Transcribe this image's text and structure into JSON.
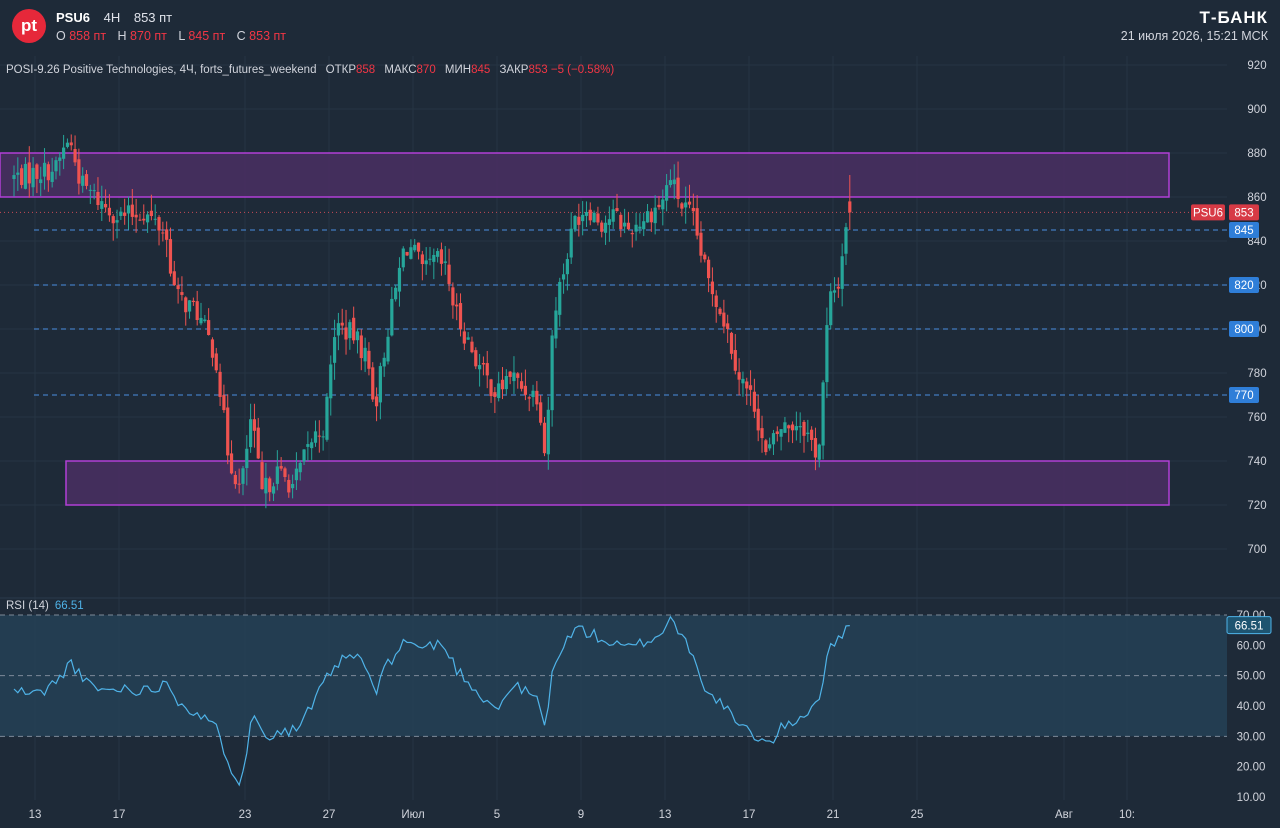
{
  "header": {
    "logo_text": "pt",
    "symbol": "PSU6",
    "interval": "4H",
    "last_price": "853 пт",
    "ohlc": [
      {
        "label": "O",
        "value": "858 пт"
      },
      {
        "label": "H",
        "value": "870 пт"
      },
      {
        "label": "L",
        "value": "845 пт"
      },
      {
        "label": "C",
        "value": "853 пт"
      }
    ],
    "brand": "Т-БАНК",
    "datetime": "21 июля 2026, 15:21 МСК"
  },
  "legend": {
    "title": "POSI-9.26 Positive Technologies, 4Ч, forts_futures_weekend",
    "open_label": "ОТКР",
    "open": "858",
    "high_label": "МАКС",
    "high": "870",
    "low_label": "МИН",
    "low": "845",
    "close_label": "ЗАКР",
    "close": "853",
    "change": "−5 (−0.58%)"
  },
  "rsi_legend": {
    "label": "RSI (14)",
    "value": "66.51"
  },
  "colors": {
    "background": "#1e2a38",
    "up": "#26a69a",
    "down": "#ef5350",
    "zone_fill": "#4a2f63",
    "zone_border": "#b13fd6",
    "level_line": "#4a8fe0",
    "rsi_line": "#4fb3e8",
    "rsi_band": "#26445a",
    "price_label": "#d73a45",
    "level_label": "#2f7ed8"
  },
  "chart_data": [
    {
      "type": "candlestick",
      "title": "POSI-9.26 Positive Technologies, 4Ч, forts_futures_weekend",
      "ylim": [
        693,
        924
      ],
      "y_ticks": [
        700,
        720,
        740,
        760,
        780,
        800,
        820,
        840,
        860,
        880,
        900,
        920
      ],
      "x_ticks": [
        {
          "label": "13",
          "day": 13
        },
        {
          "label": "17",
          "day": 17
        },
        {
          "label": "23",
          "day": 23
        },
        {
          "label": "27",
          "day": 27
        },
        {
          "label": "Июл",
          "day": 31
        },
        {
          "label": "5",
          "day": 35
        },
        {
          "label": "9",
          "day": 39
        },
        {
          "label": "13",
          "day": 43
        },
        {
          "label": "17",
          "day": 47
        },
        {
          "label": "21",
          "day": 51
        },
        {
          "label": "25",
          "day": 55
        },
        {
          "label": "Авг",
          "day": 62
        },
        {
          "label": "10:",
          "day": 65
        }
      ],
      "resistance_zone": [
        860,
        880
      ],
      "support_zone": [
        720,
        740
      ],
      "levels": [
        "845",
        "820",
        "800",
        "770"
      ],
      "last_price": {
        "symbol": "PSU6",
        "value": "853"
      },
      "anchors": [
        [
          12.0,
          869
        ],
        [
          14.0,
          873
        ],
        [
          14.6,
          887
        ],
        [
          15.2,
          866
        ],
        [
          16.2,
          857
        ],
        [
          17.0,
          851
        ],
        [
          18.2,
          853
        ],
        [
          19.2,
          844
        ],
        [
          19.7,
          815
        ],
        [
          20.7,
          808
        ],
        [
          21.6,
          788
        ],
        [
          22.2,
          743
        ],
        [
          22.8,
          726
        ],
        [
          23.3,
          760
        ],
        [
          23.8,
          725
        ],
        [
          24.5,
          735
        ],
        [
          25.3,
          729
        ],
        [
          26.2,
          750
        ],
        [
          26.8,
          756
        ],
        [
          27.3,
          802
        ],
        [
          28.2,
          797
        ],
        [
          28.8,
          787
        ],
        [
          29.2,
          765
        ],
        [
          29.8,
          800
        ],
        [
          30.6,
          838
        ],
        [
          31.0,
          836
        ],
        [
          31.5,
          825
        ],
        [
          32.1,
          832
        ],
        [
          32.6,
          826
        ],
        [
          33.0,
          808
        ],
        [
          34.2,
          782
        ],
        [
          35.0,
          770
        ],
        [
          35.6,
          780
        ],
        [
          36.2,
          773
        ],
        [
          37.0,
          770
        ],
        [
          37.3,
          741
        ],
        [
          37.7,
          808
        ],
        [
          38.3,
          832
        ],
        [
          38.7,
          850
        ],
        [
          39.3,
          856
        ],
        [
          40.0,
          848
        ],
        [
          40.5,
          852
        ],
        [
          41.3,
          845
        ],
        [
          42.3,
          853
        ],
        [
          42.9,
          858
        ],
        [
          43.2,
          870
        ],
        [
          43.8,
          856
        ],
        [
          44.3,
          851
        ],
        [
          45.0,
          823
        ],
        [
          45.4,
          815
        ],
        [
          45.9,
          802
        ],
        [
          46.5,
          780
        ],
        [
          47.3,
          765
        ],
        [
          47.8,
          742
        ],
        [
          48.5,
          755
        ],
        [
          49.5,
          758
        ],
        [
          50.3,
          742
        ],
        [
          50.8,
          812
        ],
        [
          51.3,
          822
        ],
        [
          51.6,
          848
        ],
        [
          51.8,
          853
        ]
      ],
      "candle_count": 240
    },
    {
      "type": "line",
      "title": "RSI (14)",
      "ylim": [
        8,
        72
      ],
      "y_ticks": [
        10,
        20,
        30,
        40,
        50,
        60,
        70
      ],
      "y_tick_labels": [
        "10.00",
        "20.00",
        "30.00",
        "40.00",
        "50.00",
        "60.00",
        "70.00"
      ],
      "band": [
        30,
        70
      ],
      "midline": 50,
      "last_value": "66.51",
      "anchors": [
        [
          12.0,
          45
        ],
        [
          13.2,
          44
        ],
        [
          14.2,
          49
        ],
        [
          14.7,
          55
        ],
        [
          15.3,
          48
        ],
        [
          16.3,
          45
        ],
        [
          17.2,
          46
        ],
        [
          18.3,
          45
        ],
        [
          19.3,
          48
        ],
        [
          19.8,
          42
        ],
        [
          20.8,
          37
        ],
        [
          21.7,
          32
        ],
        [
          22.3,
          20
        ],
        [
          22.8,
          15
        ],
        [
          23.4,
          38
        ],
        [
          23.9,
          30
        ],
        [
          24.6,
          32
        ],
        [
          25.4,
          32
        ],
        [
          26.3,
          41
        ],
        [
          26.8,
          48
        ],
        [
          27.4,
          54
        ],
        [
          28.3,
          57
        ],
        [
          28.8,
          52
        ],
        [
          29.2,
          44
        ],
        [
          29.8,
          54
        ],
        [
          30.7,
          62
        ],
        [
          31.1,
          60
        ],
        [
          31.6,
          59
        ],
        [
          32.2,
          61
        ],
        [
          32.7,
          57
        ],
        [
          33.1,
          52
        ],
        [
          34.3,
          43
        ],
        [
          35.1,
          39
        ],
        [
          35.7,
          47
        ],
        [
          36.3,
          45
        ],
        [
          37.0,
          42
        ],
        [
          37.3,
          31
        ],
        [
          37.7,
          55
        ],
        [
          38.4,
          62
        ],
        [
          38.8,
          66
        ],
        [
          39.4,
          64
        ],
        [
          40.0,
          62
        ],
        [
          40.6,
          60
        ],
        [
          41.3,
          59
        ],
        [
          42.3,
          62
        ],
        [
          42.9,
          64
        ],
        [
          43.2,
          70
        ],
        [
          43.8,
          63
        ],
        [
          44.4,
          57
        ],
        [
          45.0,
          43
        ],
        [
          45.4,
          43
        ],
        [
          46.0,
          38
        ],
        [
          46.6,
          33
        ],
        [
          47.4,
          30
        ],
        [
          47.9,
          27
        ],
        [
          48.6,
          33
        ],
        [
          49.6,
          37
        ],
        [
          50.3,
          42
        ],
        [
          50.8,
          58
        ],
        [
          51.3,
          62
        ],
        [
          51.6,
          67
        ],
        [
          51.8,
          66.51
        ]
      ]
    }
  ]
}
